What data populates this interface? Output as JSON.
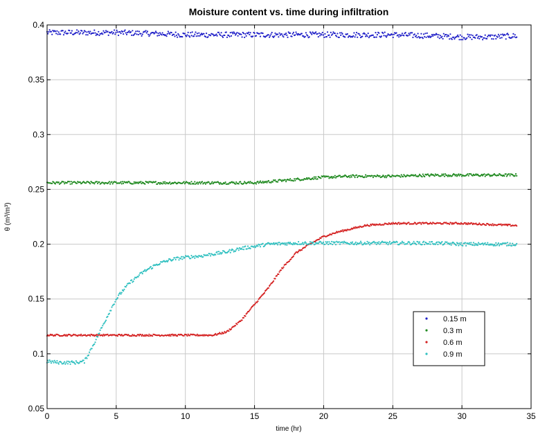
{
  "chart_data": {
    "type": "scatter",
    "title": "Moisture content vs. time during infiltration",
    "xlabel": "time (hr)",
    "ylabel": "θ (m³/m³)",
    "xlim": [
      0,
      35
    ],
    "ylim": [
      0.05,
      0.4
    ],
    "xticks": [
      0,
      5,
      10,
      15,
      20,
      25,
      30,
      35
    ],
    "yticks": [
      0.05,
      0.1,
      0.15,
      0.2,
      0.25,
      0.3,
      0.35,
      0.4
    ],
    "xtick_labels": [
      "0",
      "5",
      "10",
      "15",
      "20",
      "25",
      "30",
      "35"
    ],
    "ytick_labels": [
      "0.05",
      "0.1",
      "0.15",
      "0.2",
      "0.25",
      "0.3",
      "0.35",
      "0.4"
    ],
    "grid": true,
    "legend_position": "lower-right",
    "series": [
      {
        "name": "0.15 m",
        "color": "#2020c8",
        "points": [
          [
            0,
            0.393
          ],
          [
            2,
            0.393
          ],
          [
            5,
            0.393
          ],
          [
            8,
            0.392
          ],
          [
            10,
            0.391
          ],
          [
            13,
            0.391
          ],
          [
            15,
            0.391
          ],
          [
            18,
            0.391
          ],
          [
            20,
            0.391
          ],
          [
            23,
            0.391
          ],
          [
            25,
            0.391
          ],
          [
            28,
            0.39
          ],
          [
            30,
            0.389
          ],
          [
            32,
            0.389
          ],
          [
            34,
            0.39
          ]
        ]
      },
      {
        "name": "0.3 m",
        "color": "#208a20",
        "points": [
          [
            0,
            0.256
          ],
          [
            5,
            0.256
          ],
          [
            10,
            0.256
          ],
          [
            13,
            0.256
          ],
          [
            15,
            0.256
          ],
          [
            17,
            0.258
          ],
          [
            19,
            0.26
          ],
          [
            20,
            0.261
          ],
          [
            22,
            0.262
          ],
          [
            25,
            0.262
          ],
          [
            28,
            0.263
          ],
          [
            30,
            0.263
          ],
          [
            34,
            0.263
          ]
        ]
      },
      {
        "name": "0.6 m",
        "color": "#d42020",
        "points": [
          [
            0,
            0.117
          ],
          [
            5,
            0.117
          ],
          [
            10,
            0.117
          ],
          [
            12,
            0.117
          ],
          [
            13,
            0.12
          ],
          [
            14,
            0.13
          ],
          [
            15,
            0.145
          ],
          [
            16,
            0.16
          ],
          [
            17,
            0.178
          ],
          [
            18,
            0.192
          ],
          [
            19,
            0.2
          ],
          [
            20,
            0.207
          ],
          [
            21,
            0.211
          ],
          [
            22,
            0.214
          ],
          [
            23,
            0.217
          ],
          [
            24,
            0.218
          ],
          [
            25,
            0.219
          ],
          [
            28,
            0.219
          ],
          [
            30,
            0.219
          ],
          [
            32,
            0.218
          ],
          [
            34,
            0.217
          ]
        ]
      },
      {
        "name": "0.9 m",
        "color": "#30c0c0",
        "points": [
          [
            0,
            0.093
          ],
          [
            1,
            0.092
          ],
          [
            2,
            0.092
          ],
          [
            2.7,
            0.093
          ],
          [
            3,
            0.1
          ],
          [
            3.5,
            0.112
          ],
          [
            4,
            0.125
          ],
          [
            4.5,
            0.138
          ],
          [
            5,
            0.15
          ],
          [
            5.5,
            0.158
          ],
          [
            6,
            0.165
          ],
          [
            7,
            0.175
          ],
          [
            8,
            0.182
          ],
          [
            9,
            0.186
          ],
          [
            10,
            0.188
          ],
          [
            11,
            0.189
          ],
          [
            12,
            0.191
          ],
          [
            13,
            0.193
          ],
          [
            14,
            0.196
          ],
          [
            15,
            0.198
          ],
          [
            16,
            0.2
          ],
          [
            18,
            0.201
          ],
          [
            20,
            0.201
          ],
          [
            22,
            0.201
          ],
          [
            25,
            0.201
          ],
          [
            28,
            0.201
          ],
          [
            30,
            0.2
          ],
          [
            32,
            0.2
          ],
          [
            34,
            0.2
          ]
        ]
      }
    ]
  }
}
